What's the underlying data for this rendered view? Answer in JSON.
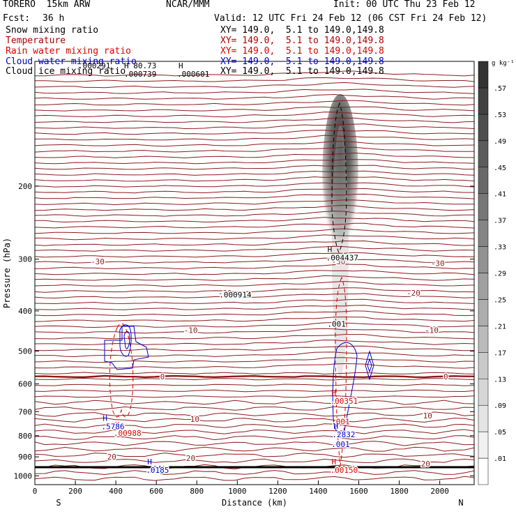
{
  "header": {
    "model": "TORERO  15km ARW",
    "center": "NCAR/MMM",
    "init": "Init: 00 UTC Thu 23 Feb 12",
    "fcst_label": "Fcst:",
    "fcst_value": "36 h",
    "valid": "Valid: 12 UTC Fri 24 Feb 12 (06 CST Fri 24 Feb 12)"
  },
  "legend": [
    {
      "name": "Snow mixing ratio",
      "color": "#000000",
      "xy": "XY= 149.0,  5.1 to 149.0,149.8"
    },
    {
      "name": "Temperature",
      "color": "#b00000",
      "xy": "XY= 149.0,  5.1 to 149.0,149.8"
    },
    {
      "name": "Rain water mixing ratio",
      "color": "#dd0000",
      "xy": "XY= 149.0,  5.1 to 149.0,149.8"
    },
    {
      "name": "Cloud water mixing ratio",
      "color": "#0000cc",
      "xy": "XY= 149.0,  5.1 to 149.0,149.8"
    },
    {
      "name": "Cloud ice mixing ratio",
      "color": "#000000",
      "xy": "XY= 149.0,  5.1 to 149.0,149.8"
    }
  ],
  "top_labels": [
    ".000291",
    "H 80.73",
    ".000739",
    "H",
    ".000601"
  ],
  "chart_data": {
    "type": "contour",
    "xlabel": "Distance (km)",
    "ylabel": "Pressure (hPa)",
    "xlim": [
      0,
      2170
    ],
    "ylim": [
      1050,
      100
    ],
    "y_scale": "log",
    "x_ticks": [
      0,
      200,
      400,
      600,
      800,
      1000,
      1200,
      1400,
      1600,
      1800,
      2000
    ],
    "y_ticks": [
      200,
      300,
      400,
      500,
      600,
      700,
      800,
      900,
      1000
    ],
    "end_labels": {
      "left": "S",
      "right": "N"
    },
    "colorbar": {
      "unit": "g kg⁻¹",
      "levels": [
        ".01",
        ".05",
        ".09",
        ".13",
        ".17",
        ".21",
        ".25",
        ".29",
        ".33",
        ".37",
        ".41",
        ".45",
        ".49",
        ".53",
        ".57"
      ],
      "color_low": "#ffffff",
      "color_high": "#333333"
    },
    "isotherm_levels": [
      -30,
      -20,
      -10,
      0,
      10,
      20
    ],
    "isotherm_labels": [
      {
        "text": "-30",
        "x": 310,
        "p": 304
      },
      {
        "text": "-30",
        "x": 1500,
        "p": 304
      },
      {
        "text": "-30",
        "x": 1990,
        "p": 307
      },
      {
        "text": "-20",
        "x": 940,
        "p": 362
      },
      {
        "text": "-20",
        "x": 1870,
        "p": 362
      },
      {
        "text": "-10",
        "x": 770,
        "p": 445
      },
      {
        "text": "-10",
        "x": 1960,
        "p": 445
      },
      {
        "text": "0",
        "x": 630,
        "p": 576
      },
      {
        "text": "0",
        "x": 2030,
        "p": 576
      },
      {
        "text": "10",
        "x": 790,
        "p": 730
      },
      {
        "text": "10",
        "x": 1940,
        "p": 716
      },
      {
        "text": "20",
        "x": 380,
        "p": 900
      },
      {
        "text": "20",
        "x": 770,
        "p": 906
      },
      {
        "text": "20",
        "x": 1930,
        "p": 935
      }
    ],
    "snow_max": {
      "label": "H",
      "value": ".004437",
      "x": 1480,
      "p": 300
    },
    "snow_contour_label": {
      "value": ".001",
      "x": 1490,
      "p": 430
    },
    "snow_note": {
      "value": ".000914",
      "x": 990,
      "p": 380
    },
    "rain_max": [
      {
        "label": "H",
        "value": ".00351",
        "x": 1500,
        "p": 665
      },
      {
        "label": "H",
        "value": ".00988",
        "x": 430,
        "p": 795
      },
      {
        "label": "H",
        "value": ".00150",
        "x": 1500,
        "p": 975
      }
    ],
    "rain_contour_label": {
      "value": ".001",
      "x": 1510,
      "p": 740
    },
    "cloud_water_max": [
      {
        "label": "H",
        "value": ".5786",
        "x": 370,
        "p": 765
      },
      {
        "label": "H",
        "value": ".2832",
        "x": 1510,
        "p": 800
      },
      {
        "label": "H",
        "value": ".0185",
        "x": 590,
        "p": 975
      }
    ],
    "cloud_water_contour_label": {
      "value": ".001",
      "x": 1510,
      "p": 838
    }
  }
}
